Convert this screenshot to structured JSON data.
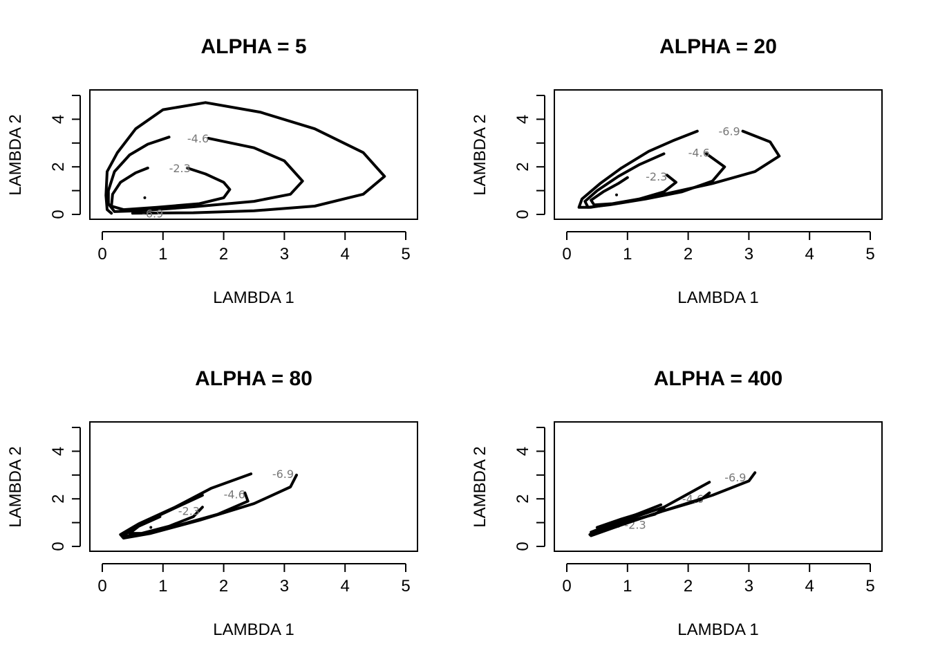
{
  "figure": {
    "axis_titles": {
      "x": "LAMBDA 1",
      "y": "LAMBDA 2"
    }
  },
  "chart_data": [
    {
      "type": "contour",
      "title": "ALPHA =  5",
      "xlabel": "LAMBDA 1",
      "ylabel": "LAMBDA 2",
      "xlim": [
        0,
        5
      ],
      "ylim": [
        0,
        5
      ],
      "x_ticks": [
        "0",
        "1",
        "2",
        "3",
        "4",
        "5"
      ],
      "y_ticks": [
        "0",
        "2",
        "4"
      ],
      "grid": false,
      "mode_point": [
        0.7,
        0.7
      ],
      "contours": [
        {
          "label": "-2.3",
          "label_at": [
            1.1,
            1.95
          ],
          "points": [
            [
              1.4,
              1.95
            ],
            [
              1.7,
              1.7
            ],
            [
              2.0,
              1.35
            ],
            [
              2.1,
              1.05
            ],
            [
              2.0,
              0.7
            ],
            [
              1.6,
              0.45
            ],
            [
              0.9,
              0.3
            ],
            [
              0.35,
              0.2
            ],
            [
              0.15,
              0.35
            ],
            [
              0.17,
              0.85
            ],
            [
              0.3,
              1.35
            ],
            [
              0.55,
              1.75
            ],
            [
              0.75,
              1.95
            ]
          ]
        },
        {
          "label": "-4.6",
          "label_at": [
            1.4,
            3.2
          ],
          "points": [
            [
              1.75,
              3.2
            ],
            [
              2.5,
              2.8
            ],
            [
              3.0,
              2.25
            ],
            [
              3.3,
              1.4
            ],
            [
              3.1,
              0.85
            ],
            [
              2.5,
              0.55
            ],
            [
              1.5,
              0.32
            ],
            [
              0.6,
              0.15
            ],
            [
              0.2,
              0.12
            ],
            [
              0.1,
              0.45
            ],
            [
              0.1,
              1.0
            ],
            [
              0.2,
              1.8
            ],
            [
              0.45,
              2.5
            ],
            [
              0.75,
              2.95
            ],
            [
              1.1,
              3.25
            ]
          ]
        },
        {
          "label": "-6.9",
          "label_at": [
            0.65,
            0.05
          ],
          "points": [
            [
              0.5,
              0.05
            ],
            [
              1.5,
              0.07
            ],
            [
              2.5,
              0.15
            ],
            [
              3.5,
              0.35
            ],
            [
              4.3,
              0.85
            ],
            [
              4.65,
              1.6
            ],
            [
              4.3,
              2.6
            ],
            [
              3.5,
              3.6
            ],
            [
              2.6,
              4.3
            ],
            [
              1.7,
              4.7
            ],
            [
              1.0,
              4.4
            ],
            [
              0.55,
              3.6
            ],
            [
              0.25,
              2.6
            ],
            [
              0.08,
              1.8
            ],
            [
              0.06,
              0.8
            ],
            [
              0.08,
              0.2
            ],
            [
              0.15,
              0.05
            ]
          ]
        }
      ]
    },
    {
      "type": "contour",
      "title": "ALPHA =  20",
      "xlabel": "LAMBDA 1",
      "ylabel": "LAMBDA 2",
      "xlim": [
        0,
        5
      ],
      "ylim": [
        0,
        5
      ],
      "x_ticks": [
        "0",
        "1",
        "2",
        "3",
        "4",
        "5"
      ],
      "y_ticks": [
        "0",
        "2",
        "4"
      ],
      "grid": false,
      "mode_point": [
        0.82,
        0.82
      ],
      "contours": [
        {
          "label": "-2.3",
          "label_at": [
            1.3,
            1.6
          ],
          "points": [
            [
              1.65,
              1.65
            ],
            [
              1.8,
              1.35
            ],
            [
              1.6,
              0.95
            ],
            [
              1.2,
              0.65
            ],
            [
              0.75,
              0.45
            ],
            [
              0.45,
              0.4
            ],
            [
              0.4,
              0.6
            ],
            [
              0.6,
              0.95
            ],
            [
              0.85,
              1.3
            ],
            [
              1.0,
              1.55
            ]
          ]
        },
        {
          "label": "-4.6",
          "label_at": [
            2.0,
            2.6
          ],
          "points": [
            [
              2.3,
              2.55
            ],
            [
              2.6,
              2.0
            ],
            [
              2.4,
              1.4
            ],
            [
              1.9,
              0.95
            ],
            [
              1.3,
              0.65
            ],
            [
              0.7,
              0.4
            ],
            [
              0.35,
              0.3
            ],
            [
              0.3,
              0.55
            ],
            [
              0.5,
              1.0
            ],
            [
              0.85,
              1.6
            ],
            [
              1.2,
              2.1
            ],
            [
              1.6,
              2.55
            ]
          ]
        },
        {
          "label": "-6.9",
          "label_at": [
            2.5,
            3.5
          ],
          "points": [
            [
              2.9,
              3.5
            ],
            [
              3.35,
              3.05
            ],
            [
              3.5,
              2.45
            ],
            [
              3.1,
              1.8
            ],
            [
              2.4,
              1.3
            ],
            [
              1.6,
              0.85
            ],
            [
              0.9,
              0.5
            ],
            [
              0.4,
              0.3
            ],
            [
              0.2,
              0.3
            ],
            [
              0.25,
              0.65
            ],
            [
              0.55,
              1.3
            ],
            [
              0.9,
              1.95
            ],
            [
              1.35,
              2.65
            ],
            [
              1.75,
              3.1
            ],
            [
              2.15,
              3.5
            ]
          ]
        }
      ]
    },
    {
      "type": "contour",
      "title": "ALPHA =  80",
      "xlabel": "LAMBDA 1",
      "ylabel": "LAMBDA 2",
      "xlim": [
        0,
        5
      ],
      "ylim": [
        0,
        5
      ],
      "x_ticks": [
        "0",
        "1",
        "2",
        "3",
        "4",
        "5"
      ],
      "y_ticks": [
        "0",
        "2",
        "4"
      ],
      "grid": false,
      "mode_point": [
        0.8,
        0.8
      ],
      "contours": [
        {
          "label": "-2.3",
          "label_at": [
            1.25,
            1.5
          ],
          "points": [
            [
              1.65,
              1.65
            ],
            [
              1.5,
              1.25
            ],
            [
              1.1,
              0.85
            ],
            [
              0.65,
              0.55
            ],
            [
              0.45,
              0.55
            ],
            [
              0.6,
              0.85
            ],
            [
              0.95,
              1.25
            ]
          ]
        },
        {
          "label": "-4.6",
          "label_at": [
            2.0,
            2.2
          ],
          "points": [
            [
              2.35,
              2.25
            ],
            [
              2.4,
              1.9
            ],
            [
              1.9,
              1.35
            ],
            [
              1.2,
              0.85
            ],
            [
              0.55,
              0.45
            ],
            [
              0.35,
              0.45
            ],
            [
              0.55,
              0.85
            ],
            [
              1.1,
              1.5
            ],
            [
              1.65,
              2.15
            ]
          ]
        },
        {
          "label": "-6.9",
          "label_at": [
            2.8,
            3.05
          ],
          "points": [
            [
              3.2,
              3.0
            ],
            [
              3.1,
              2.5
            ],
            [
              2.5,
              1.8
            ],
            [
              1.6,
              1.1
            ],
            [
              0.8,
              0.55
            ],
            [
              0.35,
              0.35
            ],
            [
              0.3,
              0.5
            ],
            [
              0.6,
              0.95
            ],
            [
              1.2,
              1.65
            ],
            [
              1.8,
              2.45
            ],
            [
              2.45,
              3.05
            ]
          ]
        }
      ]
    },
    {
      "type": "contour",
      "title": "ALPHA =  400",
      "xlabel": "LAMBDA 1",
      "ylabel": "LAMBDA 2",
      "xlim": [
        0,
        5
      ],
      "ylim": [
        0,
        5
      ],
      "x_ticks": [
        "0",
        "1",
        "2",
        "3",
        "4",
        "5"
      ],
      "y_ticks": [
        "0",
        "2",
        "4"
      ],
      "grid": false,
      "mode_point": [
        0.85,
        0.85
      ],
      "contours": [
        {
          "label": "-2.3",
          "label_at": [
            0.95,
            0.92
          ],
          "points": [
            [
              1.6,
              1.6
            ],
            [
              1.45,
              1.35
            ],
            [
              1.0,
              1.05
            ],
            [
              0.55,
              0.7
            ],
            [
              0.5,
              0.8
            ],
            [
              0.9,
              1.15
            ],
            [
              1.35,
              1.5
            ]
          ]
        },
        {
          "label": "-4.6",
          "label_at": [
            1.9,
            2.0
          ],
          "points": [
            [
              2.35,
              2.25
            ],
            [
              2.2,
              1.95
            ],
            [
              1.6,
              1.5
            ],
            [
              1.0,
              1.0
            ],
            [
              0.45,
              0.5
            ],
            [
              0.4,
              0.6
            ],
            [
              0.9,
              1.1
            ],
            [
              1.55,
              1.75
            ]
          ]
        },
        {
          "label": "-6.9",
          "label_at": [
            2.6,
            2.9
          ],
          "points": [
            [
              3.1,
              3.1
            ],
            [
              3.0,
              2.75
            ],
            [
              2.4,
              2.15
            ],
            [
              1.6,
              1.5
            ],
            [
              0.9,
              0.9
            ],
            [
              0.4,
              0.45
            ],
            [
              0.38,
              0.5
            ],
            [
              0.9,
              1.05
            ],
            [
              1.6,
              1.65
            ],
            [
              2.35,
              2.7
            ]
          ]
        }
      ]
    }
  ]
}
